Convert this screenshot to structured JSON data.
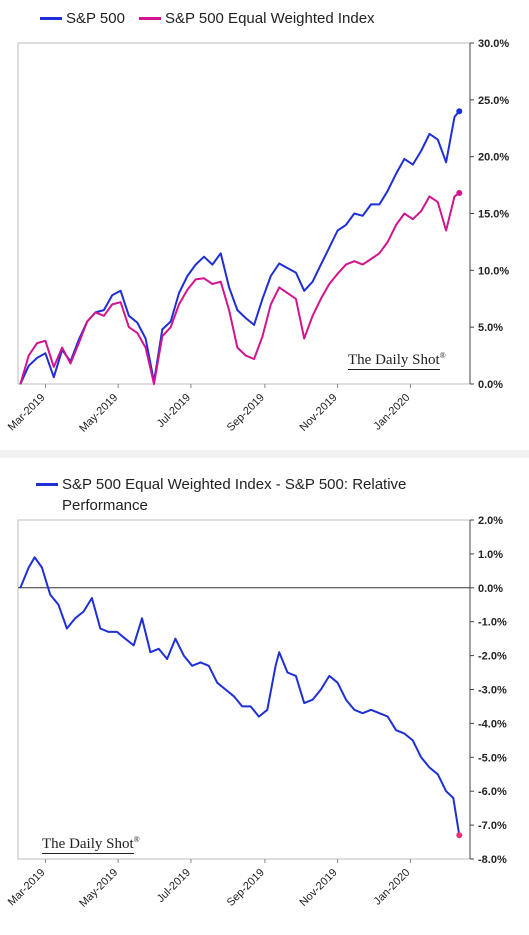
{
  "chart_data": [
    {
      "type": "line",
      "title": "",
      "legend_position": "top",
      "ylim": [
        0,
        30
      ],
      "y_ticks": [
        "0.0%",
        "5.0%",
        "10.0%",
        "15.0%",
        "20.0%",
        "25.0%",
        "30.0%"
      ],
      "x_ticks": [
        "Mar-2019",
        "May-2019",
        "Jul-2019",
        "Sep-2019",
        "Nov-2019",
        "Jan-2020"
      ],
      "watermark": "The Daily Shot",
      "watermark_mark": "®",
      "series": [
        {
          "name": "S&P 500",
          "color": "#1f2fd6",
          "points": [
            [
              "2019-02-08",
              0.0
            ],
            [
              "2019-02-15",
              1.6
            ],
            [
              "2019-02-22",
              2.3
            ],
            [
              "2019-03-01",
              2.7
            ],
            [
              "2019-03-08",
              0.6
            ],
            [
              "2019-03-15",
              3.0
            ],
            [
              "2019-03-22",
              2.0
            ],
            [
              "2019-03-29",
              3.9
            ],
            [
              "2019-04-05",
              5.5
            ],
            [
              "2019-04-12",
              6.3
            ],
            [
              "2019-04-19",
              6.5
            ],
            [
              "2019-04-26",
              7.8
            ],
            [
              "2019-05-03",
              8.2
            ],
            [
              "2019-05-10",
              6.0
            ],
            [
              "2019-05-17",
              5.4
            ],
            [
              "2019-05-24",
              4.0
            ],
            [
              "2019-05-31",
              0.2
            ],
            [
              "2019-06-07",
              4.8
            ],
            [
              "2019-06-14",
              5.5
            ],
            [
              "2019-06-21",
              8.0
            ],
            [
              "2019-06-28",
              9.5
            ],
            [
              "2019-07-05",
              10.5
            ],
            [
              "2019-07-12",
              11.2
            ],
            [
              "2019-07-19",
              10.5
            ],
            [
              "2019-07-26",
              11.5
            ],
            [
              "2019-08-02",
              8.5
            ],
            [
              "2019-08-09",
              6.5
            ],
            [
              "2019-08-16",
              5.8
            ],
            [
              "2019-08-23",
              5.2
            ],
            [
              "2019-08-30",
              7.5
            ],
            [
              "2019-09-06",
              9.5
            ],
            [
              "2019-09-13",
              10.6
            ],
            [
              "2019-09-20",
              10.2
            ],
            [
              "2019-09-27",
              9.8
            ],
            [
              "2019-10-04",
              8.2
            ],
            [
              "2019-10-11",
              9.0
            ],
            [
              "2019-10-18",
              10.5
            ],
            [
              "2019-10-25",
              12.0
            ],
            [
              "2019-11-01",
              13.5
            ],
            [
              "2019-11-08",
              14.0
            ],
            [
              "2019-11-15",
              15.0
            ],
            [
              "2019-11-22",
              14.8
            ],
            [
              "2019-11-29",
              15.8
            ],
            [
              "2019-12-06",
              15.8
            ],
            [
              "2019-12-13",
              17.0
            ],
            [
              "2019-12-20",
              18.5
            ],
            [
              "2019-12-27",
              19.8
            ],
            [
              "2020-01-03",
              19.3
            ],
            [
              "2020-01-10",
              20.5
            ],
            [
              "2020-01-17",
              22.0
            ],
            [
              "2020-01-24",
              21.5
            ],
            [
              "2020-01-31",
              19.5
            ],
            [
              "2020-02-07",
              23.5
            ],
            [
              "2020-02-11",
              24.0
            ]
          ]
        },
        {
          "name": "S&P 500 Equal Weighted Index",
          "color": "#d0158f",
          "points": [
            [
              "2019-02-08",
              0.0
            ],
            [
              "2019-02-15",
              2.5
            ],
            [
              "2019-02-22",
              3.6
            ],
            [
              "2019-03-01",
              3.8
            ],
            [
              "2019-03-08",
              1.5
            ],
            [
              "2019-03-15",
              3.2
            ],
            [
              "2019-03-22",
              1.8
            ],
            [
              "2019-03-29",
              3.6
            ],
            [
              "2019-04-05",
              5.5
            ],
            [
              "2019-04-12",
              6.3
            ],
            [
              "2019-04-19",
              6.0
            ],
            [
              "2019-04-26",
              7.0
            ],
            [
              "2019-05-03",
              7.2
            ],
            [
              "2019-05-10",
              5.0
            ],
            [
              "2019-05-17",
              4.5
            ],
            [
              "2019-05-24",
              3.2
            ],
            [
              "2019-05-31",
              0.0
            ],
            [
              "2019-06-07",
              4.2
            ],
            [
              "2019-06-14",
              5.0
            ],
            [
              "2019-06-21",
              7.0
            ],
            [
              "2019-06-28",
              8.3
            ],
            [
              "2019-07-05",
              9.2
            ],
            [
              "2019-07-12",
              9.3
            ],
            [
              "2019-07-19",
              8.8
            ],
            [
              "2019-07-26",
              9.0
            ],
            [
              "2019-08-02",
              6.5
            ],
            [
              "2019-08-09",
              3.2
            ],
            [
              "2019-08-16",
              2.5
            ],
            [
              "2019-08-23",
              2.2
            ],
            [
              "2019-08-30",
              4.2
            ],
            [
              "2019-09-06",
              7.0
            ],
            [
              "2019-09-13",
              8.5
            ],
            [
              "2019-09-20",
              8.0
            ],
            [
              "2019-09-27",
              7.5
            ],
            [
              "2019-10-04",
              4.0
            ],
            [
              "2019-10-11",
              6.0
            ],
            [
              "2019-10-18",
              7.5
            ],
            [
              "2019-10-25",
              8.8
            ],
            [
              "2019-11-01",
              9.7
            ],
            [
              "2019-11-08",
              10.5
            ],
            [
              "2019-11-15",
              10.8
            ],
            [
              "2019-11-22",
              10.5
            ],
            [
              "2019-11-29",
              11.0
            ],
            [
              "2019-12-06",
              11.5
            ],
            [
              "2019-12-13",
              12.5
            ],
            [
              "2019-12-20",
              14.0
            ],
            [
              "2019-12-27",
              15.0
            ],
            [
              "2020-01-03",
              14.5
            ],
            [
              "2020-01-10",
              15.2
            ],
            [
              "2020-01-17",
              16.5
            ],
            [
              "2020-01-24",
              16.0
            ],
            [
              "2020-01-31",
              13.5
            ],
            [
              "2020-02-07",
              16.5
            ],
            [
              "2020-02-11",
              16.8
            ]
          ]
        }
      ]
    },
    {
      "type": "line",
      "title": "",
      "legend_position": "top",
      "ylim": [
        -8,
        2
      ],
      "y_ticks": [
        "-8.0%",
        "-7.0%",
        "-6.0%",
        "-5.0%",
        "-4.0%",
        "-3.0%",
        "-2.0%",
        "-1.0%",
        "0.0%",
        "1.0%",
        "2.0%"
      ],
      "x_ticks": [
        "Mar-2019",
        "May-2019",
        "Jul-2019",
        "Sep-2019",
        "Nov-2019",
        "Jan-2020"
      ],
      "watermark": "The Daily Shot",
      "watermark_mark": "®",
      "end_marker_color": "#e8336f",
      "series": [
        {
          "name": "S&P 500 Equal Weighted Index - S&P 500:  Relative Performance",
          "color": "#1f2fd6",
          "points": [
            [
              "2019-02-08",
              0.0
            ],
            [
              "2019-02-15",
              0.6
            ],
            [
              "2019-02-20",
              0.9
            ],
            [
              "2019-02-26",
              0.6
            ],
            [
              "2019-03-05",
              -0.2
            ],
            [
              "2019-03-12",
              -0.5
            ],
            [
              "2019-03-19",
              -1.2
            ],
            [
              "2019-03-26",
              -0.9
            ],
            [
              "2019-04-02",
              -0.7
            ],
            [
              "2019-04-09",
              -0.3
            ],
            [
              "2019-04-16",
              -1.2
            ],
            [
              "2019-04-23",
              -1.3
            ],
            [
              "2019-04-30",
              -1.3
            ],
            [
              "2019-05-07",
              -1.5
            ],
            [
              "2019-05-14",
              -1.7
            ],
            [
              "2019-05-21",
              -0.9
            ],
            [
              "2019-05-28",
              -1.9
            ],
            [
              "2019-06-04",
              -1.8
            ],
            [
              "2019-06-11",
              -2.1
            ],
            [
              "2019-06-18",
              -1.5
            ],
            [
              "2019-06-25",
              -2.0
            ],
            [
              "2019-07-02",
              -2.3
            ],
            [
              "2019-07-09",
              -2.2
            ],
            [
              "2019-07-16",
              -2.3
            ],
            [
              "2019-07-23",
              -2.8
            ],
            [
              "2019-07-30",
              -3.0
            ],
            [
              "2019-08-06",
              -3.2
            ],
            [
              "2019-08-13",
              -3.5
            ],
            [
              "2019-08-20",
              -3.5
            ],
            [
              "2019-08-27",
              -3.8
            ],
            [
              "2019-09-03",
              -3.6
            ],
            [
              "2019-09-10",
              -2.3
            ],
            [
              "2019-09-13",
              -1.9
            ],
            [
              "2019-09-20",
              -2.5
            ],
            [
              "2019-09-27",
              -2.6
            ],
            [
              "2019-10-04",
              -3.4
            ],
            [
              "2019-10-11",
              -3.3
            ],
            [
              "2019-10-18",
              -3.0
            ],
            [
              "2019-10-25",
              -2.6
            ],
            [
              "2019-11-01",
              -2.8
            ],
            [
              "2019-11-08",
              -3.3
            ],
            [
              "2019-11-15",
              -3.6
            ],
            [
              "2019-11-22",
              -3.7
            ],
            [
              "2019-11-29",
              -3.6
            ],
            [
              "2019-12-06",
              -3.7
            ],
            [
              "2019-12-13",
              -3.8
            ],
            [
              "2019-12-20",
              -4.2
            ],
            [
              "2019-12-27",
              -4.3
            ],
            [
              "2020-01-03",
              -4.5
            ],
            [
              "2020-01-10",
              -5.0
            ],
            [
              "2020-01-17",
              -5.3
            ],
            [
              "2020-01-24",
              -5.5
            ],
            [
              "2020-01-31",
              -6.0
            ],
            [
              "2020-02-06",
              -6.2
            ],
            [
              "2020-02-11",
              -7.3
            ]
          ]
        }
      ]
    }
  ]
}
